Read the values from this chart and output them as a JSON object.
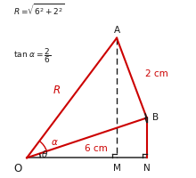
{
  "bg_color": "#ffffff",
  "red": "#cc0000",
  "blk": "#1a1a1a",
  "gray": "#555555",
  "O": [
    0.0,
    0.0
  ],
  "M": [
    6.0,
    0.0
  ],
  "N": [
    8.0,
    0.0
  ],
  "A": [
    6.0,
    8.0
  ],
  "B": [
    8.0,
    2.667
  ],
  "xlim": [
    -1.0,
    10.5
  ],
  "ylim": [
    -1.2,
    10.5
  ],
  "sq": 0.28,
  "sq_b": 0.3,
  "fs_label": 7.5,
  "fs_formula": 6.5
}
